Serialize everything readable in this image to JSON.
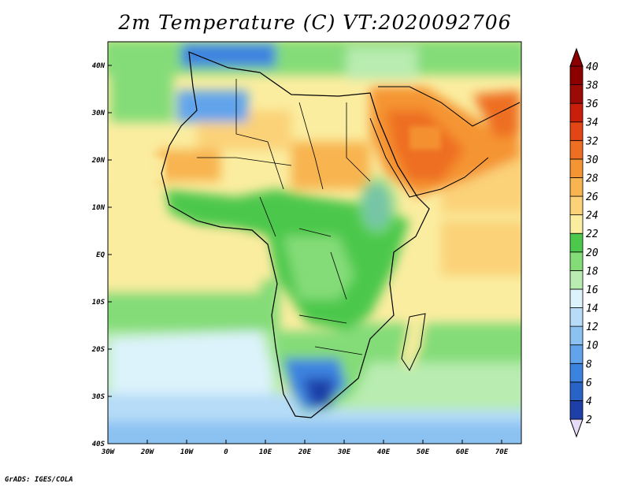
{
  "title": "2m Temperature (C) VT:2020092706",
  "credit": "GrADS: IGES/COLA",
  "map": {
    "lat_labels": [
      "40N",
      "30N",
      "20N",
      "10N",
      "EQ",
      "10S",
      "20S",
      "30S",
      "40S"
    ],
    "lon_labels": [
      "30W",
      "20W",
      "10W",
      "0",
      "10E",
      "20E",
      "30E",
      "40E",
      "50E",
      "60E",
      "70E"
    ],
    "lat_range": [
      -40,
      45
    ],
    "lon_range": [
      -30,
      75
    ]
  },
  "colorbar": {
    "levels": [
      2,
      4,
      6,
      8,
      10,
      12,
      14,
      16,
      18,
      20,
      22,
      24,
      26,
      28,
      30,
      32,
      34,
      36,
      38,
      40
    ],
    "labels": [
      "2",
      "4",
      "6",
      "8",
      "10",
      "12",
      "14",
      "16",
      "18",
      "20",
      "22",
      "24",
      "26",
      "28",
      "30",
      "32",
      "34",
      "36",
      "38",
      "40"
    ],
    "colors": [
      "#1a1a7a",
      "#1f3fa8",
      "#2a63c8",
      "#3c83e0",
      "#62a4ec",
      "#8cc2f2",
      "#b6dcf8",
      "#dcf3fb",
      "#b8ecb0",
      "#84dc78",
      "#4cc84c",
      "#fbeda0",
      "#fbd278",
      "#f8b450",
      "#f59432",
      "#ee6e22",
      "#e24614",
      "#c81e0a",
      "#9c0a06",
      "#8c0000"
    ],
    "under_color": "#e6dcf8",
    "over_color": "#8c0000"
  }
}
